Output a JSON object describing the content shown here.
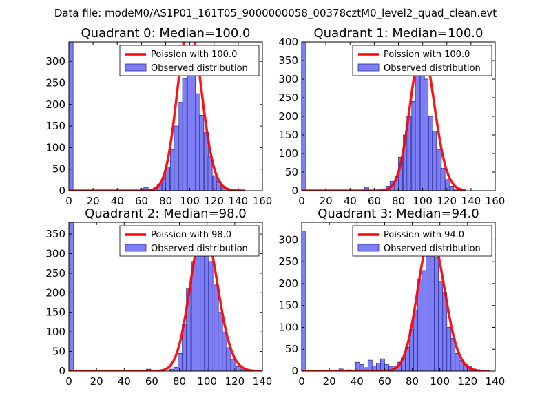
{
  "figure": {
    "suptitle": "Data file: modeM0/AS1P01_161T05_9000000058_00378cztM0_level2_quad_clean.evt"
  },
  "colors": {
    "bar_fill": "#7f7ff5",
    "bar_edge": "#2f2f9a",
    "curve": "#ff0000",
    "curve_top": "#f08a8a",
    "axes": "#000000"
  },
  "chart_data": [
    {
      "type": "bar",
      "title": "Quadrant 0: Median=100.0",
      "xlim": [
        0,
        160
      ],
      "ylim": [
        0,
        345
      ],
      "xticks": [
        0,
        20,
        40,
        60,
        80,
        100,
        120,
        140,
        160
      ],
      "yticks": [
        0,
        50,
        100,
        150,
        200,
        250,
        300
      ],
      "xtick_labels": [
        "0",
        "20",
        "40",
        "60",
        "80",
        "100",
        "120",
        "140",
        "160"
      ],
      "ytick_labels": [
        "0",
        "50",
        "100",
        "150",
        "200",
        "250",
        "300"
      ],
      "legend": [
        "Poission with 100.0",
        "Observed distribution"
      ],
      "legend_location": "top-right",
      "poisson_mean": 100,
      "poisson_scale": 9600,
      "curve_range": [
        0,
        145
      ],
      "bin_width": 3.5,
      "bins_x": [
        0,
        59,
        62,
        66,
        70,
        73,
        77,
        80,
        84,
        87,
        91,
        94,
        98,
        101,
        105,
        108,
        112,
        115,
        119,
        122,
        126,
        129,
        133
      ],
      "bins_y": [
        345,
        5,
        8,
        3,
        8,
        15,
        28,
        55,
        95,
        150,
        205,
        260,
        315,
        285,
        225,
        175,
        135,
        80,
        35,
        22,
        10,
        5,
        2
      ]
    },
    {
      "type": "bar",
      "title": "Quadrant 1: Median=100.0",
      "xlim": [
        0,
        160
      ],
      "ylim": [
        0,
        400
      ],
      "xticks": [
        0,
        20,
        40,
        60,
        80,
        100,
        120,
        140,
        160
      ],
      "yticks": [
        0,
        50,
        100,
        150,
        200,
        250,
        300,
        350,
        400
      ],
      "xtick_labels": [
        "0",
        "20",
        "40",
        "60",
        "80",
        "100",
        "120",
        "140",
        "160"
      ],
      "ytick_labels": [
        "0",
        "50",
        "100",
        "150",
        "200",
        "250",
        "300",
        "350",
        "400"
      ],
      "legend": [
        "Poission with 100.0",
        "Observed distribution"
      ],
      "legend_location": "top-right",
      "poisson_mean": 100,
      "poisson_scale": 9600,
      "curve_range": [
        0,
        135
      ],
      "bin_width": 3.5,
      "bins_x": [
        0,
        52,
        66,
        70,
        73,
        77,
        80,
        84,
        87,
        91,
        94,
        98,
        101,
        105,
        108,
        112,
        115,
        119,
        122,
        126,
        129
      ],
      "bins_y": [
        400,
        8,
        5,
        12,
        25,
        40,
        90,
        150,
        200,
        240,
        330,
        380,
        300,
        200,
        160,
        110,
        60,
        30,
        12,
        5,
        3
      ]
    },
    {
      "type": "bar",
      "title": "Quadrant 2: Median=98.0",
      "xlim": [
        0,
        140
      ],
      "ylim": [
        0,
        380
      ],
      "xticks": [
        0,
        20,
        40,
        60,
        80,
        100,
        120,
        140
      ],
      "yticks": [
        0,
        50,
        100,
        150,
        200,
        250,
        300,
        350
      ],
      "xtick_labels": [
        "0",
        "20",
        "40",
        "60",
        "80",
        "100",
        "120",
        "140"
      ],
      "ytick_labels": [
        "0",
        "50",
        "100",
        "150",
        "200",
        "250",
        "300",
        "350"
      ],
      "legend": [
        "Poission with 98.0",
        "Observed distribution"
      ],
      "legend_location": "top-right",
      "poisson_mean": 98,
      "poisson_scale": 9000,
      "curve_range": [
        0,
        140
      ],
      "bin_width": 3.2,
      "bins_x": [
        0,
        56,
        73,
        76,
        79,
        82,
        85,
        89,
        92,
        95,
        98,
        101,
        105,
        108,
        111,
        114,
        117,
        121,
        124,
        127
      ],
      "bins_y": [
        380,
        5,
        5,
        10,
        45,
        120,
        210,
        280,
        300,
        340,
        310,
        280,
        220,
        150,
        100,
        60,
        30,
        12,
        5,
        2
      ]
    },
    {
      "type": "bar",
      "title": "Quadrant 3: Median=94.0",
      "xlim": [
        0,
        140
      ],
      "ylim": [
        0,
        340
      ],
      "xticks": [
        0,
        20,
        40,
        60,
        80,
        100,
        120,
        140
      ],
      "yticks": [
        0,
        50,
        100,
        150,
        200,
        250,
        300
      ],
      "xtick_labels": [
        "0",
        "20",
        "40",
        "60",
        "80",
        "100",
        "120",
        "140"
      ],
      "ytick_labels": [
        "0",
        "50",
        "100",
        "150",
        "200",
        "250",
        "300"
      ],
      "legend": [
        "Poission with 94.0",
        "Observed distribution"
      ],
      "legend_location": "top-right",
      "poisson_mean": 94,
      "poisson_scale": 7500,
      "curve_range": [
        0,
        135
      ],
      "bin_width": 3,
      "bins_x": [
        0,
        27,
        33,
        39,
        42,
        45,
        48,
        51,
        54,
        57,
        60,
        63,
        66,
        69,
        72,
        75,
        78,
        81,
        84,
        87,
        90,
        93,
        96,
        99,
        102,
        105,
        108,
        111,
        114,
        117,
        120,
        123,
        126
      ],
      "bins_y": [
        320,
        5,
        3,
        20,
        15,
        8,
        25,
        12,
        18,
        28,
        15,
        10,
        12,
        20,
        30,
        55,
        95,
        140,
        210,
        230,
        290,
        310,
        260,
        205,
        180,
        100,
        75,
        40,
        25,
        15,
        10,
        5,
        3
      ]
    }
  ]
}
